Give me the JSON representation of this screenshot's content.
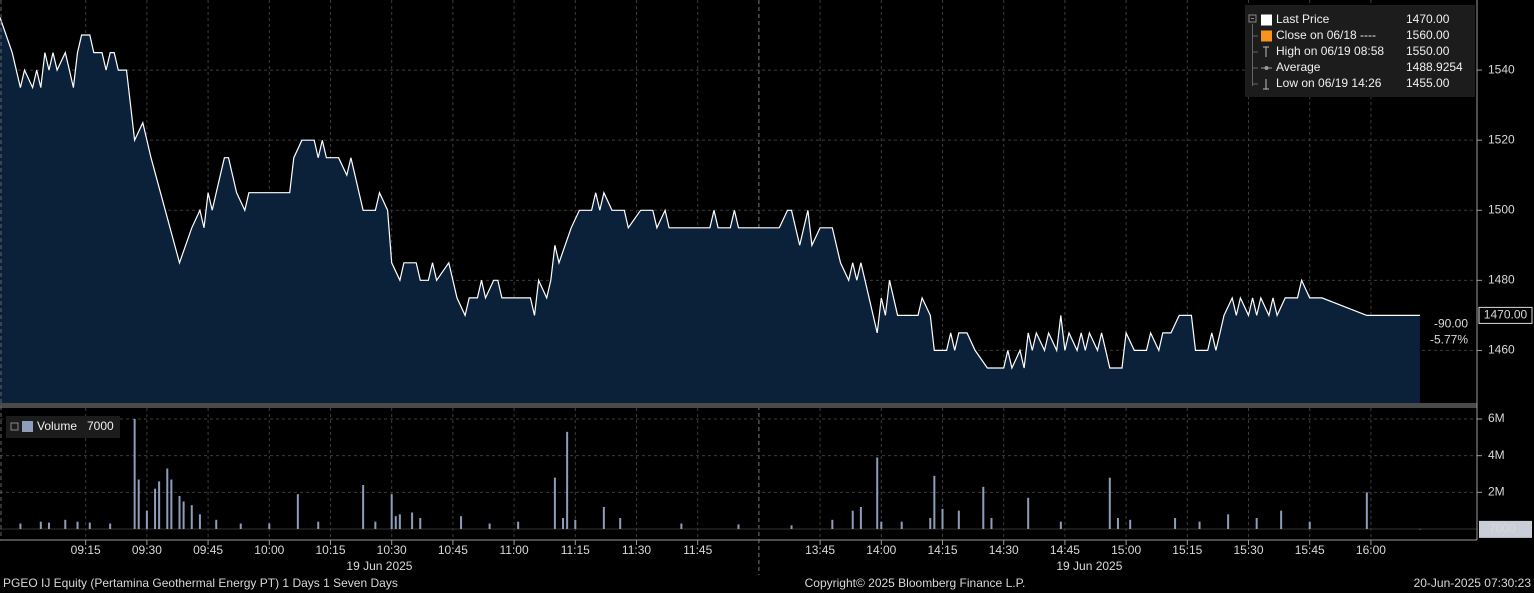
{
  "chart_data": [
    {
      "type": "area",
      "xlim": [
        "08:54",
        "16:26"
      ],
      "session_break": [
        "12:00",
        "13:30"
      ],
      "ylim": [
        1445,
        1560
      ],
      "yticks": [
        1460,
        1480,
        1500,
        1520,
        1540
      ],
      "grid": true,
      "x": [
        "08:54",
        "08:57",
        "08:59",
        "09:00",
        "09:02",
        "09:03",
        "09:04",
        "09:05",
        "09:06",
        "09:07",
        "09:08",
        "09:10",
        "09:11",
        "09:12",
        "09:13",
        "09:14",
        "09:16",
        "09:17",
        "09:19",
        "09:20",
        "09:21",
        "09:22",
        "09:23",
        "09:25",
        "09:27",
        "09:29",
        "09:31",
        "09:38",
        "09:41",
        "09:43",
        "09:44",
        "09:45",
        "09:46",
        "09:47",
        "09:49",
        "09:50",
        "09:52",
        "09:54",
        "09:55",
        "10:05",
        "10:06",
        "10:08",
        "10:11",
        "10:12",
        "10:13",
        "10:14",
        "10:17",
        "10:19",
        "10:20",
        "10:21",
        "10:23",
        "10:26",
        "10:27",
        "10:29",
        "10:30",
        "10:32",
        "10:33",
        "10:36",
        "10:37",
        "10:39",
        "10:40",
        "10:41",
        "10:44",
        "10:46",
        "10:48",
        "10:49",
        "10:51",
        "10:52",
        "10:53",
        "10:55",
        "10:56",
        "10:57",
        "11:04",
        "11:05",
        "11:06",
        "11:08",
        "11:09",
        "11:10",
        "11:11",
        "11:14",
        "11:16",
        "11:19",
        "11:20",
        "11:21",
        "11:22",
        "11:24",
        "11:27",
        "11:28",
        "11:31",
        "11:34",
        "11:35",
        "11:37",
        "11:38",
        "11:48",
        "11:49",
        "11:50",
        "11:53",
        "11:54",
        "11:55",
        "11:59",
        "13:35",
        "13:37",
        "13:38",
        "13:40",
        "13:42",
        "13:43",
        "13:45",
        "13:48",
        "13:50",
        "13:52",
        "13:53",
        "13:54",
        "13:55",
        "13:56",
        "13:59",
        "14:00",
        "14:01",
        "14:02",
        "14:04",
        "14:09",
        "14:10",
        "14:12",
        "14:13",
        "14:16",
        "14:17",
        "14:18",
        "14:19",
        "14:21",
        "14:23",
        "14:26",
        "14:30",
        "14:31",
        "14:32",
        "14:34",
        "14:35",
        "14:36",
        "14:37",
        "14:38",
        "14:40",
        "14:41",
        "14:43",
        "14:44",
        "14:45",
        "14:46",
        "14:48",
        "14:49",
        "14:50",
        "14:51",
        "14:53",
        "14:54",
        "14:56",
        "14:59",
        "15:00",
        "15:02",
        "15:05",
        "15:06",
        "15:08",
        "15:09",
        "15:11",
        "15:13",
        "15:16",
        "15:17",
        "15:20",
        "15:21",
        "15:22",
        "15:23",
        "15:24",
        "15:26",
        "15:27",
        "15:28",
        "15:30",
        "15:31",
        "15:32",
        "15:33",
        "15:35",
        "15:36",
        "15:37",
        "15:39",
        "15:42",
        "15:43",
        "15:45",
        "15:48",
        "15:59",
        "16:12"
      ],
      "series": [
        {
          "name": "Last Price",
          "color": "#ffffff",
          "fill": "#0b2139",
          "last": {
            "value": 1470,
            "label": "1470.00"
          },
          "values": [
            1555,
            1545,
            1535,
            1540,
            1535,
            1540,
            1535,
            1545,
            1540,
            1545,
            1540,
            1545,
            1540,
            1535,
            1545,
            1550,
            1550,
            1545,
            1545,
            1540,
            1545,
            1545,
            1540,
            1540,
            1520,
            1525,
            1515,
            1485,
            1495,
            1500,
            1495,
            1505,
            1500,
            1505,
            1515,
            1515,
            1505,
            1500,
            1505,
            1505,
            1515,
            1520,
            1520,
            1515,
            1520,
            1515,
            1515,
            1510,
            1515,
            1510,
            1500,
            1500,
            1505,
            1500,
            1485,
            1480,
            1485,
            1485,
            1480,
            1480,
            1485,
            1480,
            1485,
            1475,
            1470,
            1475,
            1475,
            1480,
            1475,
            1480,
            1480,
            1475,
            1475,
            1470,
            1480,
            1475,
            1480,
            1490,
            1485,
            1495,
            1500,
            1500,
            1505,
            1500,
            1505,
            1500,
            1500,
            1495,
            1500,
            1500,
            1495,
            1500,
            1495,
            1495,
            1500,
            1495,
            1495,
            1500,
            1495,
            1495,
            1495,
            1500,
            1500,
            1490,
            1500,
            1490,
            1495,
            1495,
            1485,
            1480,
            1485,
            1480,
            1485,
            1480,
            1465,
            1475,
            1470,
            1480,
            1470,
            1470,
            1475,
            1470,
            1460,
            1460,
            1465,
            1460,
            1465,
            1465,
            1460,
            1455,
            1455,
            1460,
            1455,
            1460,
            1455,
            1465,
            1460,
            1465,
            1460,
            1465,
            1460,
            1470,
            1460,
            1465,
            1460,
            1465,
            1460,
            1465,
            1460,
            1465,
            1455,
            1455,
            1465,
            1460,
            1460,
            1465,
            1460,
            1465,
            1465,
            1470,
            1470,
            1460,
            1460,
            1465,
            1460,
            1465,
            1470,
            1475,
            1470,
            1475,
            1470,
            1475,
            1470,
            1475,
            1470,
            1475,
            1470,
            1475,
            1475,
            1480,
            1475,
            1475,
            1470,
            1470
          ]
        }
      ],
      "stats": [
        {
          "label": "Close on 06/18 ----",
          "value": 1560,
          "value_label": "1560.00",
          "color": "#f7941d"
        },
        {
          "label": "High on 06/19 08:58",
          "value": 1550,
          "value_label": "1550.00",
          "color": "#bbbbbb"
        },
        {
          "label": "Average",
          "value": 1488.9254,
          "value_label": "1488.9254",
          "color": "#999999"
        },
        {
          "label": "Low on 06/19 14:26",
          "value": 1455,
          "value_label": "1455.00",
          "color": "#bbbbbb"
        }
      ],
      "change": {
        "value": -90,
        "label": "-90.00"
      },
      "change_pct": {
        "value": -5.77,
        "label": "-5.77%"
      },
      "change_color": "#f7941d"
    },
    {
      "type": "bar",
      "xlim": [
        "08:54",
        "16:26"
      ],
      "session_break": [
        "12:00",
        "13:30"
      ],
      "xticks": [
        "09:15",
        "09:30",
        "09:45",
        "10:00",
        "10:15",
        "10:30",
        "10:45",
        "11:00",
        "11:15",
        "11:30",
        "11:45",
        "13:45",
        "14:00",
        "14:15",
        "14:30",
        "14:45",
        "15:00",
        "15:15",
        "15:30",
        "15:45",
        "16:00"
      ],
      "date_labels": [
        "19 Jun 2025",
        "19 Jun 2025"
      ],
      "ylim": [
        -600000,
        6600000
      ],
      "yticks": [
        {
          "value": 2000000,
          "label": "2M"
        },
        {
          "value": 4000000,
          "label": "4M"
        },
        {
          "value": 6000000,
          "label": "6M"
        }
      ],
      "grid": true,
      "x": [
        "08:59",
        "09:04",
        "09:06",
        "09:10",
        "09:13",
        "09:16",
        "09:21",
        "09:27",
        "09:28",
        "09:30",
        "09:32",
        "09:33",
        "09:35",
        "09:36",
        "09:38",
        "09:39",
        "09:41",
        "09:43",
        "09:47",
        "09:53",
        "10:00",
        "10:07",
        "10:12",
        "10:23",
        "10:26",
        "10:30",
        "10:31",
        "10:32",
        "10:35",
        "10:37",
        "10:47",
        "10:54",
        "11:01",
        "11:10",
        "11:12",
        "11:13",
        "11:15",
        "11:22",
        "11:26",
        "11:41",
        "11:55",
        "13:38",
        "13:48",
        "13:53",
        "13:55",
        "13:59",
        "14:00",
        "14:05",
        "14:12",
        "14:13",
        "14:15",
        "14:19",
        "14:25",
        "14:27",
        "14:36",
        "14:44",
        "14:56",
        "14:58",
        "15:01",
        "15:12",
        "15:18",
        "15:25",
        "15:32",
        "15:38",
        "15:45",
        "15:59",
        "16:12"
      ],
      "series": [
        {
          "name": "Volume",
          "color": "#8d9dbb",
          "values": [
            300000,
            400000,
            350000,
            500000,
            400000,
            350000,
            300000,
            6000000,
            2700000,
            1000000,
            2200000,
            2600000,
            3300000,
            2700000,
            1800000,
            1500000,
            1300000,
            800000,
            500000,
            300000,
            300000,
            1900000,
            400000,
            2400000,
            400000,
            1900000,
            700000,
            800000,
            900000,
            600000,
            700000,
            300000,
            400000,
            2800000,
            600000,
            5300000,
            500000,
            1200000,
            600000,
            300000,
            250000,
            200000,
            500000,
            1000000,
            1200000,
            3900000,
            400000,
            400000,
            600000,
            2900000,
            1100000,
            1000000,
            2300000,
            600000,
            1700000,
            400000,
            2800000,
            600000,
            500000,
            600000,
            400000,
            800000,
            600000,
            1000000,
            400000,
            2000000,
            7000
          ]
        }
      ],
      "last": 7000
    }
  ],
  "footer": {
    "left": "PGEO IJ Equity (Pertamina Geothermal Energy PT) 1 Days 1 Seven Days",
    "center": "Copyright© 2025 Bloomberg Finance L.P.",
    "right": "20-Jun-2025 07:30:23"
  }
}
